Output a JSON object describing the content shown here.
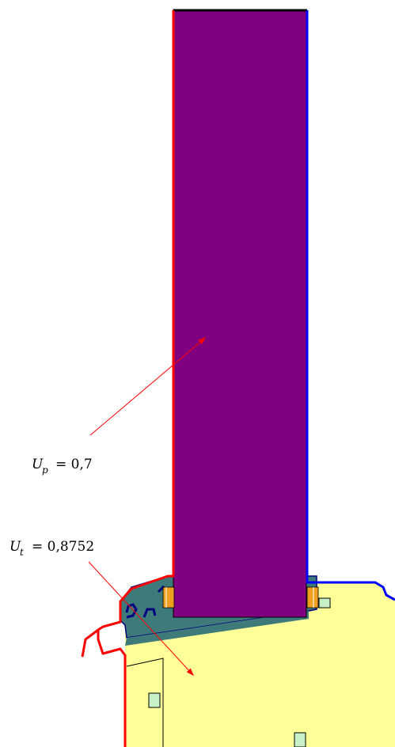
{
  "labels": {
    "panel_u": {
      "symbol": "U",
      "subscript": "p",
      "equals": "= 0,7"
    },
    "total_u": {
      "symbol": "U",
      "subscript": "t",
      "equals": "= 0,8752"
    }
  },
  "colors": {
    "panel_fill": "#800080",
    "frame_fill": "#3F7A7A",
    "insulation_fill": "#FFFF99",
    "spacer_fill": "#C8F0C8",
    "fitting_fill": "#F0A020",
    "exterior_boundary": "#FF0000",
    "interior_boundary": "#0000FF",
    "profile_outline": "#000080",
    "arrow": "#FF0000",
    "panel_top_edge": "#000000"
  }
}
